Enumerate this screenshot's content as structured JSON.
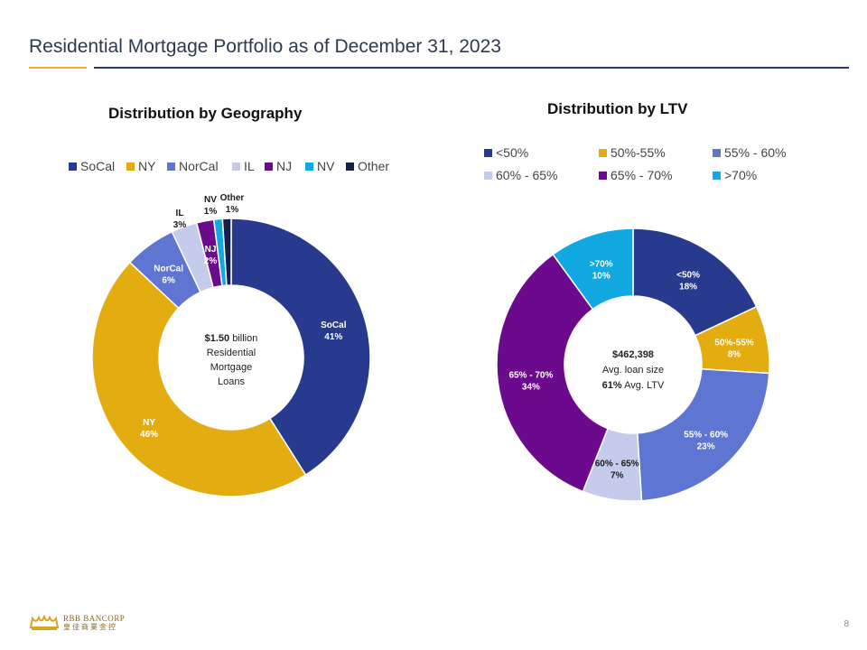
{
  "header": {
    "title": "Residential Mortgage Portfolio as of December 31, 2023"
  },
  "geo_chart": {
    "title": "Distribution  by Geography",
    "center": {
      "amount": "$1.50",
      "unit": " billion",
      "line2": "Residential",
      "line3": "Mortgage",
      "line4": "Loans"
    }
  },
  "ltv_chart": {
    "title": "Distribution  by LTV",
    "center": {
      "line1": "$462,398",
      "line2": "Avg. loan size",
      "line3_bold": "61%",
      "line3_rest": " Avg. LTV"
    }
  },
  "chart_data": [
    {
      "type": "pie",
      "title": "Distribution  by Geography",
      "legend_position": "top",
      "slices": [
        {
          "label": "SoCal",
          "value": 41,
          "display": "41%",
          "color": "#283a8e"
        },
        {
          "label": "NY",
          "value": 46,
          "display": "46%",
          "color": "#e3ad12"
        },
        {
          "label": "NorCal",
          "value": 6,
          "display": "6%",
          "color": "#5f75d2"
        },
        {
          "label": "IL",
          "value": 3,
          "display": "3%",
          "color": "#c5cbea"
        },
        {
          "label": "NJ",
          "value": 2,
          "display": "2%",
          "color": "#6c0a8e"
        },
        {
          "label": "NV",
          "value": 1,
          "display": "1%",
          "color": "#12a9e3"
        },
        {
          "label": "Other",
          "value": 1,
          "display": "1%",
          "color": "#14204a"
        }
      ]
    },
    {
      "type": "pie",
      "title": "Distribution  by LTV",
      "legend_position": "top",
      "slices": [
        {
          "label": "<50%",
          "value": 18,
          "display": "18%",
          "color": "#283a8e"
        },
        {
          "label": "50%-55%",
          "value": 8,
          "display": "8%",
          "color": "#e3ad12"
        },
        {
          "label": "55% - 60%",
          "value": 23,
          "display": "23%",
          "color": "#5f75d2"
        },
        {
          "label": "60% - 65%",
          "value": 7,
          "display": "7%",
          "color": "#c5cbea"
        },
        {
          "label": "65% - 70%",
          "value": 34,
          "display": "34%",
          "color": "#6c0a8e"
        },
        {
          "label": ">70%",
          "value": 10,
          "display": "10%",
          "color": "#12a9e3"
        }
      ]
    }
  ],
  "footer": {
    "logo_icon": "crown-icon",
    "brand_en": "RBB BANCORP",
    "brand_cn": "皇佳商業金控",
    "page_number": "8"
  }
}
